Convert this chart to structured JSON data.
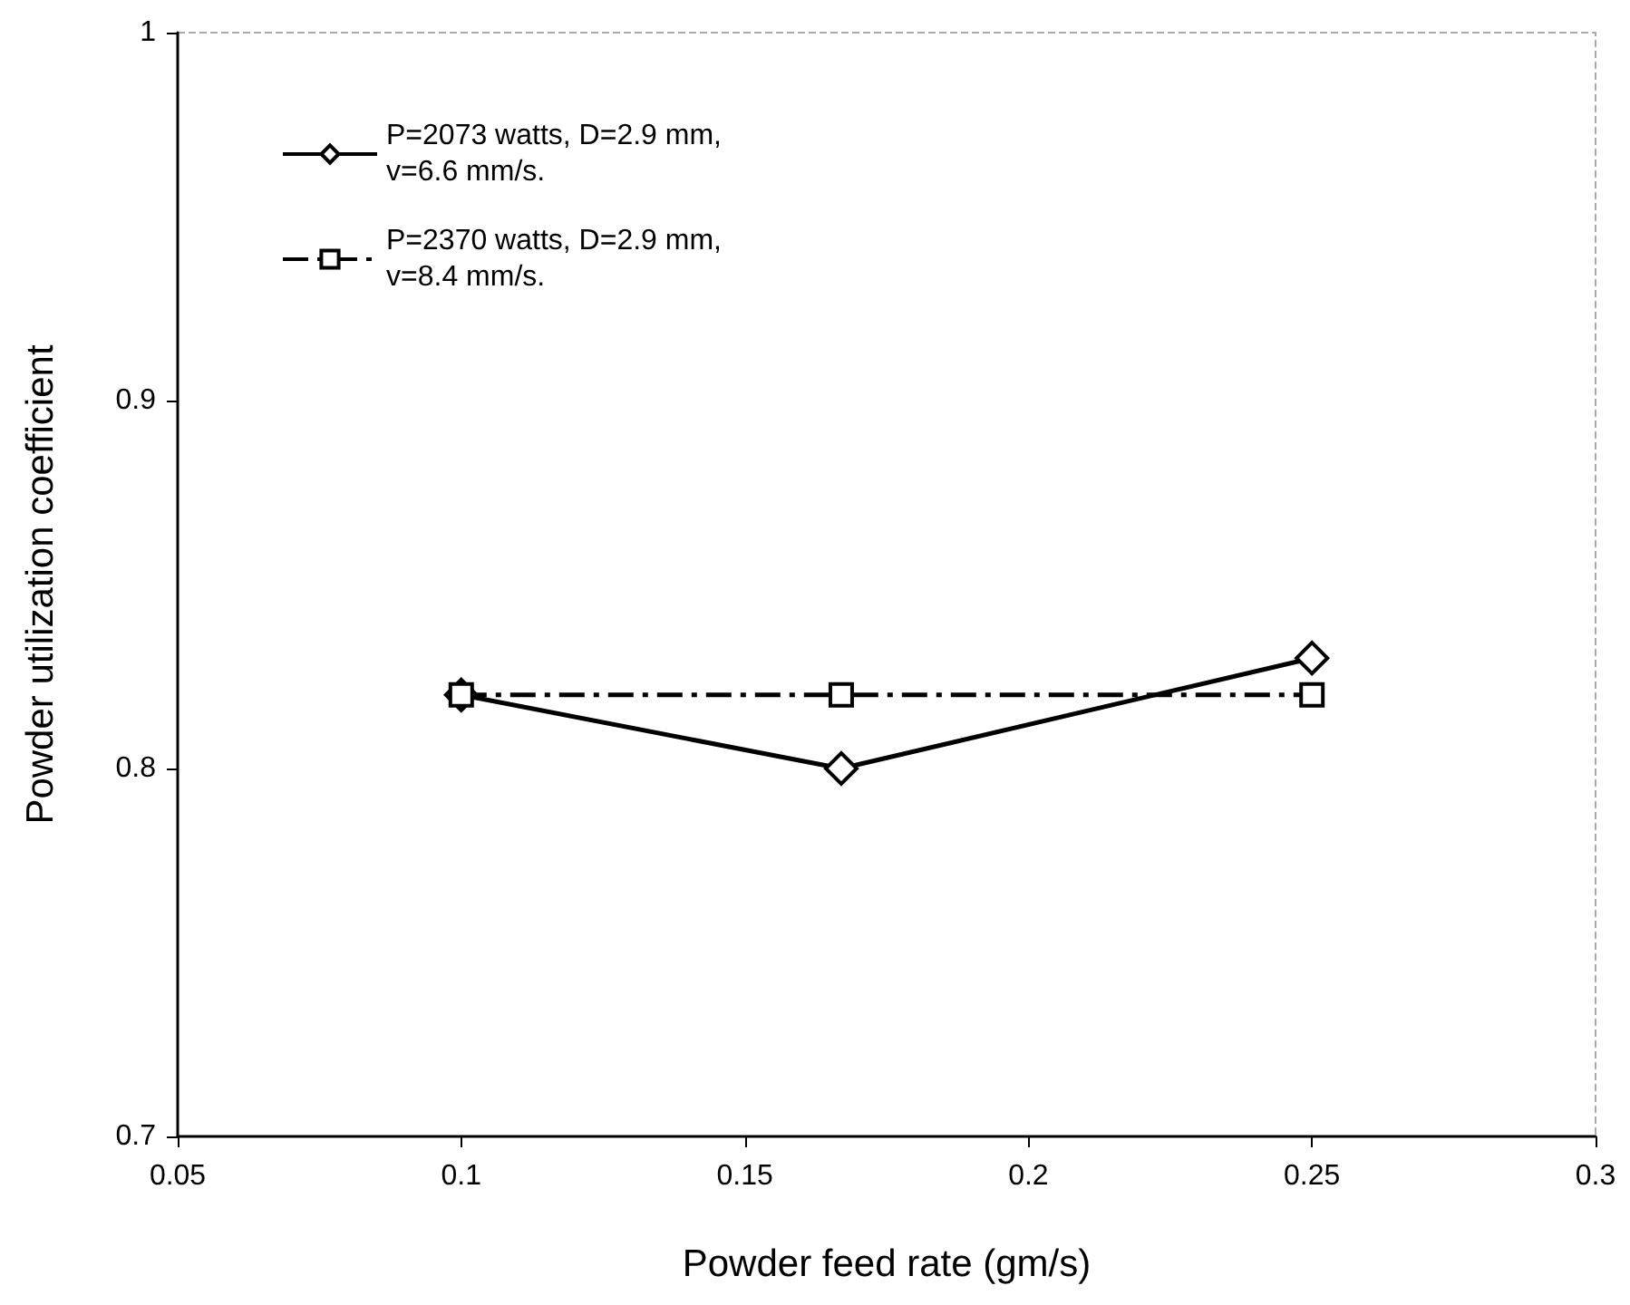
{
  "chart_data": {
    "type": "line",
    "xlabel": "Powder feed rate (gm/s)",
    "ylabel": "Powder utilization coefficient",
    "x": [
      0.1,
      0.167,
      0.25
    ],
    "series": [
      {
        "name": "P=2073 watts, D=2.9 mm, v=6.6 mm/s.",
        "color": "#000000",
        "values": [
          0.82,
          0.8,
          0.83
        ],
        "marker": "diamond",
        "line_style": "solid"
      },
      {
        "name": "P=2370 watts, D=2.9 mm, v=8.4 mm/s.",
        "color": "#000000",
        "values": [
          0.82,
          0.82,
          0.82
        ],
        "marker": "square",
        "line_style": "dashed"
      }
    ],
    "xlim": [
      0.05,
      0.3
    ],
    "xticks": [
      0.05,
      0.1,
      0.15,
      0.2,
      0.25,
      0.3
    ],
    "ylim": [
      0.7,
      1
    ],
    "yticks": [
      0.7,
      0.8,
      0.9,
      1
    ],
    "grid": false,
    "legend": "top left"
  }
}
